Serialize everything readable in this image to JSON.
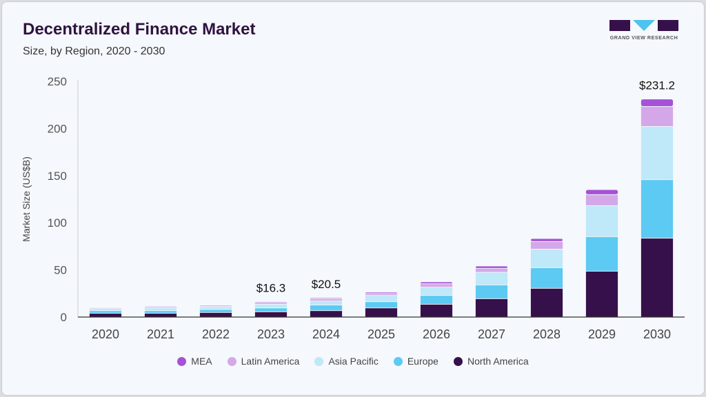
{
  "header": {
    "title": "Decentralized Finance Market",
    "subtitle": "Size, by Region, 2020 - 2030"
  },
  "logo": {
    "text": "GRAND VIEW RESEARCH"
  },
  "chart_data": {
    "type": "bar",
    "stacked": true,
    "ylabel": "Market Size (US$B)",
    "ylim": [
      0,
      250
    ],
    "yticks": [
      0,
      50,
      100,
      150,
      200,
      250
    ],
    "grid": false,
    "legend_position": "bottom",
    "categories": [
      "2020",
      "2021",
      "2022",
      "2023",
      "2024",
      "2025",
      "2026",
      "2027",
      "2028",
      "2029",
      "2030"
    ],
    "series": [
      {
        "name": "North America",
        "color": "#36104a",
        "values": [
          4.1,
          4.1,
          4.9,
          5.6,
          6.8,
          9.7,
          13.6,
          19.5,
          30.5,
          48.7,
          83.6
        ]
      },
      {
        "name": "Europe",
        "color": "#5ccaf2",
        "values": [
          2.7,
          2.7,
          3.1,
          4.1,
          5.9,
          6.6,
          9.3,
          14.6,
          21.9,
          36.6,
          62.1
        ]
      },
      {
        "name": "Asia Pacific",
        "color": "#bfe8f8",
        "values": [
          2.2,
          2.9,
          3.0,
          3.9,
          4.4,
          6.6,
          8.8,
          13.4,
          19.7,
          32.9,
          56.5
        ]
      },
      {
        "name": "Latin America",
        "color": "#d4a8e8",
        "values": [
          1.0,
          1.3,
          0.9,
          1.8,
          2.4,
          2.0,
          3.6,
          4.2,
          8.1,
          11.7,
          21.2
        ]
      },
      {
        "name": "MEA",
        "color": "#a552d6",
        "values": [
          0.5,
          0.7,
          0.8,
          0.9,
          1.0,
          1.4,
          2.0,
          2.4,
          3.1,
          5.3,
          7.8
        ]
      }
    ],
    "data_labels": [
      {
        "category": "2023",
        "text": "$16.3"
      },
      {
        "category": "2024",
        "text": "$20.5"
      },
      {
        "category": "2030",
        "text": "$231.2"
      }
    ],
    "legend_order": [
      "MEA",
      "Latin America",
      "Asia Pacific",
      "Europe",
      "North America"
    ]
  }
}
